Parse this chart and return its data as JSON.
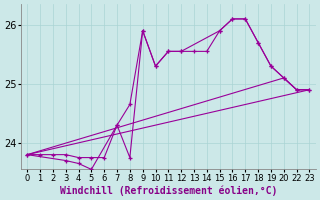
{
  "xlabel": "Windchill (Refroidissement éolien,°C)",
  "bg_color": "#cce8e8",
  "line_color": "#990099",
  "grid_color": "#aad4d4",
  "ylim": [
    23.55,
    26.35
  ],
  "yticks": [
    24,
    25,
    26
  ],
  "xlim": [
    -0.5,
    23.5
  ],
  "hours": [
    0,
    1,
    2,
    3,
    4,
    5,
    6,
    7,
    8,
    9,
    10,
    11,
    12,
    13,
    14,
    15,
    16,
    17,
    18,
    19,
    20,
    22,
    23
  ],
  "series1_x": [
    0,
    1,
    2,
    3,
    4,
    5,
    6,
    7,
    8,
    9,
    10,
    11,
    12,
    13,
    14,
    15,
    16,
    17,
    18,
    19,
    20,
    22,
    23
  ],
  "series1_y": [
    23.8,
    23.8,
    23.8,
    23.8,
    23.75,
    23.75,
    23.75,
    24.3,
    24.65,
    25.9,
    25.3,
    25.55,
    25.55,
    25.55,
    25.55,
    25.9,
    26.1,
    26.1,
    25.7,
    25.3,
    25.1,
    24.9,
    24.9
  ],
  "series2_x": [
    0,
    3,
    4,
    5,
    7,
    8,
    9,
    10,
    11,
    12,
    15,
    16,
    17,
    18,
    19,
    20,
    22,
    23
  ],
  "series2_y": [
    23.8,
    23.7,
    23.65,
    23.55,
    24.3,
    23.75,
    25.9,
    25.3,
    25.55,
    25.55,
    25.9,
    26.1,
    26.1,
    25.7,
    25.3,
    25.1,
    24.9,
    24.9
  ],
  "series3_x": [
    0,
    23
  ],
  "series3_y": [
    23.8,
    24.9
  ],
  "series4_x": [
    0,
    20,
    22,
    23
  ],
  "series4_y": [
    23.8,
    25.1,
    24.9,
    24.9
  ],
  "xlabel_color": "#880088",
  "xlabel_fontsize": 7,
  "tick_fontsize": 6,
  "ytick_fontsize": 7
}
